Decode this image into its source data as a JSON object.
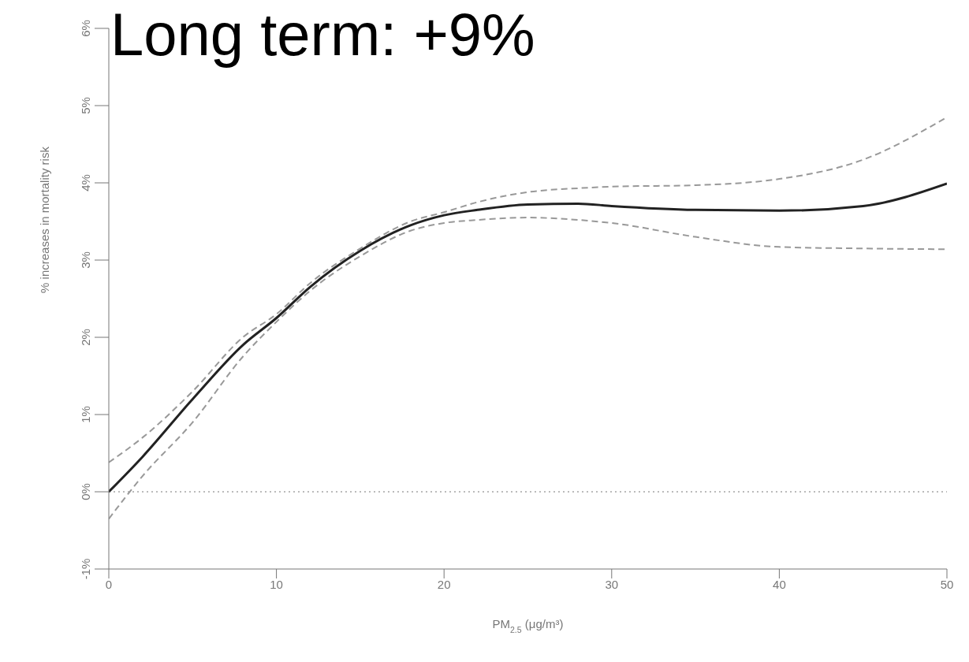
{
  "chart_data": {
    "type": "line",
    "title": "Long term: +9%",
    "xlabel": "PM$_{2.5}$ (μg/m³)",
    "ylabel": "% increases in mortality risk",
    "x": [
      0,
      2,
      5,
      8,
      10,
      12,
      15,
      18,
      20,
      22,
      25,
      28,
      30,
      35,
      40,
      45,
      50
    ],
    "series": [
      {
        "color": "#222222",
        "values": [
          0,
          0.45,
          1.2,
          1.9,
          2.25,
          2.65,
          3.12,
          3.45,
          3.58,
          3.65,
          3.72,
          3.73,
          3.7,
          3.65,
          3.64,
          3.7,
          3.99
        ]
      },
      {
        "color": "#999999",
        "line_style": "dashed",
        "values": [
          -0.35,
          0.2,
          0.9,
          1.75,
          2.2,
          2.6,
          3.05,
          3.38,
          3.48,
          3.52,
          3.55,
          3.52,
          3.48,
          3.3,
          3.17,
          3.15,
          3.14
        ]
      },
      {
        "color": "#999999",
        "line_style": "dashed",
        "values": [
          0.38,
          0.7,
          1.3,
          2.0,
          2.3,
          2.7,
          3.15,
          3.5,
          3.62,
          3.75,
          3.88,
          3.93,
          3.95,
          3.97,
          4.05,
          4.3,
          4.85
        ]
      }
    ],
    "xlim": [
      0,
      50
    ],
    "xticks": [
      0,
      10,
      20,
      30,
      40,
      50
    ],
    "ylim": [
      -1,
      6
    ],
    "yticks": [
      {
        "value": -1,
        "label": "-1%"
      },
      {
        "value": 0,
        "label": "0%"
      },
      {
        "value": 1,
        "label": "1%"
      },
      {
        "value": 2,
        "label": "2%"
      },
      {
        "value": 3,
        "label": "3%"
      },
      {
        "value": 4,
        "label": "4%"
      },
      {
        "value": 5,
        "label": "5%"
      },
      {
        "value": 6,
        "label": "6%"
      }
    ],
    "ref_lines": [
      {
        "axis": "y",
        "value": 0,
        "color": "#bbbbbb",
        "line_style": "dotted"
      }
    ],
    "grid": false,
    "marker": "none",
    "line_style": "solid"
  }
}
